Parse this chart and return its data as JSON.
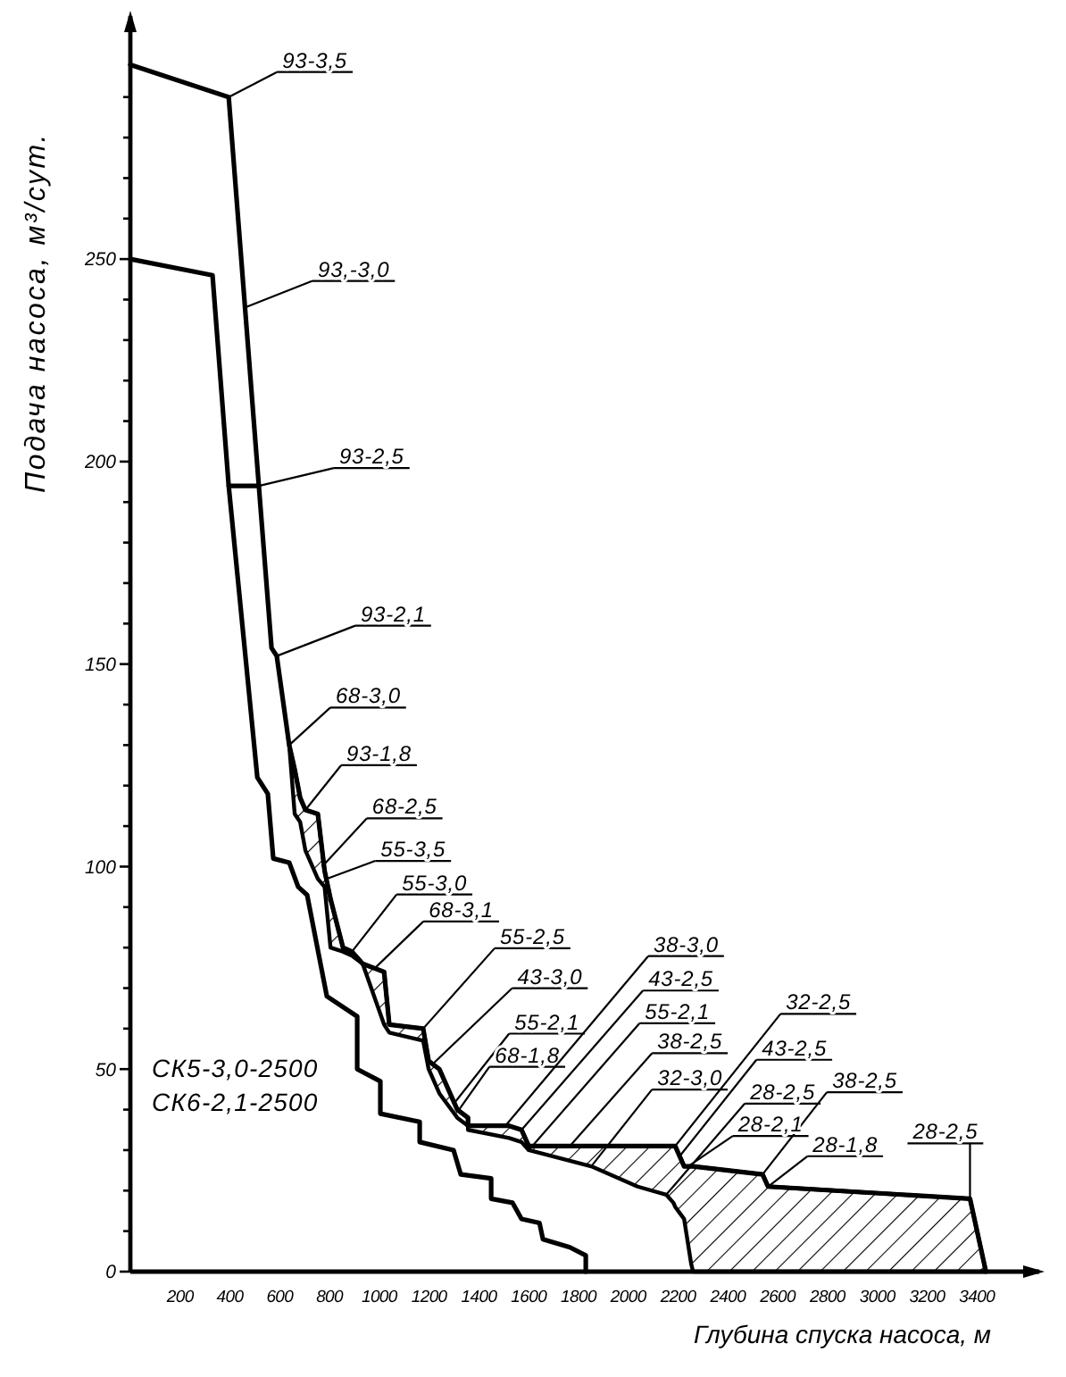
{
  "chart_data": {
    "type": "line",
    "xlabel": "Глубина спуска насоса, м",
    "ylabel": "Подача насоса, м³/сут.",
    "xlim": [
      0,
      3650
    ],
    "ylim": [
      0,
      310
    ],
    "xticks": [
      200,
      400,
      600,
      800,
      1000,
      1200,
      1400,
      1600,
      1800,
      2000,
      2200,
      2400,
      2600,
      2800,
      3000,
      3200,
      3400
    ],
    "yticks": [
      0,
      {
        "value": 10,
        "label": null
      },
      {
        "value": 20,
        "label": null
      },
      {
        "value": 30,
        "label": null
      },
      {
        "value": 40,
        "label": null
      },
      50,
      {
        "value": 60,
        "label": null
      },
      {
        "value": 70,
        "label": null
      },
      {
        "value": 80,
        "label": null
      },
      {
        "value": 90,
        "label": null
      },
      100,
      {
        "value": 110,
        "label": null
      },
      {
        "value": 120,
        "label": null
      },
      {
        "value": 130,
        "label": null
      },
      {
        "value": 140,
        "label": null
      },
      150,
      {
        "value": 160,
        "label": null
      },
      {
        "value": 170,
        "label": null
      },
      {
        "value": 180,
        "label": null
      },
      {
        "value": 190,
        "label": null
      },
      200,
      {
        "value": 210,
        "label": null
      },
      {
        "value": 220,
        "label": null
      },
      {
        "value": 230,
        "label": null
      },
      {
        "value": 240,
        "label": null
      },
      250,
      {
        "value": 260,
        "label": null
      },
      {
        "value": 270,
        "label": null
      },
      {
        "value": 280,
        "label": null
      },
      {
        "value": 290,
        "label": null
      }
    ],
    "series": [
      {
        "color": "#000000",
        "x": [
          0,
          395,
          516,
          567,
          588,
          638,
          660,
          682,
          703,
          753,
          780,
          804,
          854,
          890,
          933,
          1019,
          1040,
          1176,
          1198,
          1241,
          1313,
          1356,
          1356,
          1521,
          1571,
          1600,
          1851,
          2037,
          2152,
          2181,
          2188,
          2224,
          2252,
          2260,
          2539,
          2561,
          3372,
          3436
        ],
        "values": [
          298,
          290,
          194,
          154,
          152,
          130,
          124,
          117,
          114,
          113,
          99,
          92,
          80,
          79,
          76,
          74,
          61,
          60,
          52,
          50,
          40,
          38,
          36,
          36,
          35,
          31,
          31,
          31,
          31,
          31,
          31,
          26,
          26,
          26,
          24,
          21,
          18,
          0
        ],
        "lower": [
          null,
          null,
          null,
          null,
          null,
          130,
          113,
          111,
          104,
          97,
          95,
          80,
          79,
          78,
          76,
          61,
          59,
          57,
          50,
          44,
          38,
          36,
          35,
          33,
          32,
          30,
          26,
          21,
          19,
          17,
          16,
          13,
          2,
          0,
          0,
          0,
          0,
          0
        ],
        "upper": [
          null,
          null,
          null,
          null,
          null,
          130,
          124,
          117,
          114,
          113,
          99,
          92,
          80,
          79,
          76,
          74,
          61,
          60,
          52,
          50,
          40,
          38,
          36,
          36,
          35,
          31,
          31,
          31,
          31,
          31,
          31,
          26,
          26,
          26,
          24,
          21,
          18,
          0
        ]
      },
      {
        "color": "#000000",
        "x": [
          0,
          330,
          395,
          510,
          552,
          574,
          638,
          674,
          710,
          789,
          911,
          911,
          1004,
          1004,
          1162,
          1162,
          1298,
          1327,
          1449,
          1449,
          1535,
          1571,
          1643,
          1657,
          1765,
          1829,
          1829
        ],
        "values": [
          250,
          246,
          194,
          122,
          118,
          102,
          101,
          95,
          93,
          68,
          63,
          50,
          47,
          39,
          37,
          32,
          30,
          24,
          23,
          18,
          17,
          13,
          12,
          8,
          6,
          4,
          0
        ]
      },
      {
        "color": "#000000",
        "x": [
          395,
          516
        ],
        "values": [
          194,
          194
        ]
      }
    ],
    "annotations": [
      {
        "text": "93-3,5",
        "x": 395,
        "y": 290
      },
      {
        "text": "93,-3,0",
        "x": 459,
        "y": 238
      },
      {
        "text": "93-2,5",
        "x": 516,
        "y": 194
      },
      {
        "text": "93-2,1",
        "x": 588,
        "y": 152
      },
      {
        "text": "68-3,0",
        "x": 638,
        "y": 130
      },
      {
        "text": "93-1,8",
        "x": 703,
        "y": 114
      },
      {
        "text": "68-2,5",
        "x": 770,
        "y": 100
      },
      {
        "text": "55-3,5",
        "x": 790,
        "y": 97
      },
      {
        "text": "55-3,0",
        "x": 890,
        "y": 79
      },
      {
        "text": "68-3,1",
        "x": 983,
        "y": 75
      },
      {
        "text": "55-2,5",
        "x": 1176,
        "y": 60
      },
      {
        "text": "43-3,0",
        "x": 1210,
        "y": 51
      },
      {
        "text": "55-2,1",
        "x": 1306,
        "y": 42
      },
      {
        "text": "68-1,8",
        "x": 1320,
        "y": 40
      },
      {
        "text": "38-3,0",
        "x": 1506,
        "y": 36
      },
      {
        "text": "43-2,5",
        "x": 1571,
        "y": 35
      },
      {
        "text": "55-2,1",
        "x": 1600,
        "y": 30
      },
      {
        "text": "38-2,5",
        "x": 1765,
        "y": 31
      },
      {
        "text": "32-3,0",
        "x": 1851,
        "y": 26
      },
      {
        "text": "32-2,5",
        "x": 2188,
        "y": 31
      },
      {
        "text": "43-2,5",
        "x": 2206,
        "y": 28.5
      },
      {
        "text": "28-2,5",
        "x": 2152,
        "y": 19
      },
      {
        "text": "38-2,5",
        "x": 2539,
        "y": 24
      },
      {
        "text": "28-2,1",
        "x": 2240,
        "y": 26
      },
      {
        "text": "28-1,8",
        "x": 2561,
        "y": 21
      },
      {
        "text": "28-2,5",
        "x": 3372,
        "y": 18
      },
      "СК5-3,0-2500",
      "СК6-2,1-2500"
    ]
  }
}
